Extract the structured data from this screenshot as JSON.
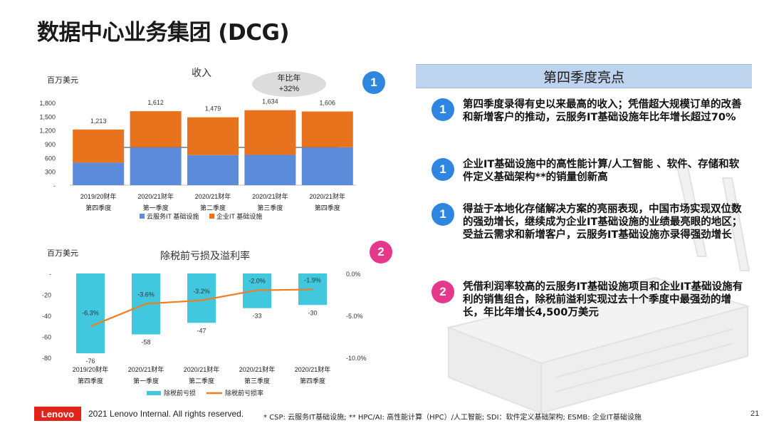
{
  "page": {
    "title": "数据中心业务集团 (DCG)",
    "footer_brand": "Lenovo",
    "footer_copyright": "2021 Lenovo Internal. All rights reserved.",
    "footer_note": "* CSP: 云服务IT基础设施; ** HPC/AI: 高性能计算（HPC）/人工智能; SDI：软件定义基础架构; ESMB: 企业IT基础设施",
    "page_number": "21"
  },
  "revenue_panel": {
    "badge": "1",
    "unit": "百万美元",
    "yoy_label": "年比年",
    "yoy_value": "+32%"
  },
  "pti_panel": {
    "badge": "2",
    "unit": "百万美元"
  },
  "highlights": {
    "title": "第四季度亮点",
    "items": [
      {
        "badge": "1",
        "text": "第四季度录得有史以来最高的收入；凭借超大规模订单的改善和新增客户的推动，云服务IT基础设施年比年增长超过70%"
      },
      {
        "badge": "1",
        "text": "企业IT基础设施中的高性能计算/人工智能 、软件、存储和软件定义基础架构**的销量创新高"
      },
      {
        "badge": "1",
        "text": "得益于本地化存储解决方案的亮丽表现，中国市场实现双位数的强劲增长，继续成为企业IT基础设施的业绩最亮眼的地区；受益云需求和新增客户，云服务IT基础设施亦录得强劲增长"
      },
      {
        "badge": "2",
        "text": "凭借利润率较高的云服务IT基础设施项目和企业IT基础设施有利的销售组合，除税前溢利实现过去十个季度中最强劲的增长，年比年增长4,500万美元"
      }
    ]
  },
  "chart_data": [
    {
      "type": "bar",
      "stacked": true,
      "title": "收入",
      "ylabel": "百万美元",
      "ylim": [
        0,
        1800
      ],
      "yticks": [
        "-",
        "300",
        "600",
        "900",
        "1,200",
        "1,500",
        "1,800"
      ],
      "ytick_values": [
        0,
        300,
        600,
        900,
        1200,
        1500,
        1800
      ],
      "categories": [
        [
          "2019/20财年",
          "第四季度"
        ],
        [
          "2020/21财年",
          "第一季度"
        ],
        [
          "2020/21财年",
          "第二季度"
        ],
        [
          "2020/21财年",
          "第三季度"
        ],
        [
          "2020/21财年",
          "第四季度"
        ]
      ],
      "series": [
        {
          "name": "云服务IT 基础设施",
          "color": "#5b8bd9",
          "values": [
            490,
            825,
            655,
            660,
            825
          ]
        },
        {
          "name": "企业IT 基础设施",
          "color": "#e8731c",
          "values": [
            723,
            787,
            824,
            974,
            781
          ]
        }
      ],
      "totals": [
        1213,
        1612,
        1479,
        1634,
        1606
      ],
      "total_labels": [
        "1,213",
        "1,612",
        "1,479",
        "1,634",
        "1,606"
      ]
    },
    {
      "type": "bar+line",
      "title": "除税前亏损及溢利率",
      "ylabel": "百万美元",
      "ylim": [
        -80,
        0
      ],
      "yticks": [
        "-",
        "-20",
        "-40",
        "-60",
        "-80"
      ],
      "ytick_values": [
        0,
        -20,
        -40,
        -60,
        -80
      ],
      "y2lim": [
        -10,
        0
      ],
      "y2ticks": [
        "0.0%",
        "-5.0%",
        "-10.0%"
      ],
      "y2tick_values": [
        0,
        -5,
        -10
      ],
      "categories": [
        [
          "2019/20财年",
          "第四季度"
        ],
        [
          "2020/21财年",
          "第一季度"
        ],
        [
          "2020/21财年",
          "第二季度"
        ],
        [
          "2020/21财年",
          "第三季度"
        ],
        [
          "2020/21财年",
          "第四季度"
        ]
      ],
      "series": [
        {
          "name": "除税前亏损",
          "type": "bar",
          "color": "#41c8df",
          "values": [
            -76,
            -58,
            -47,
            -33,
            -30
          ],
          "labels": [
            "-76",
            "-58",
            "-47",
            "-33",
            "-30"
          ]
        },
        {
          "name": "除税前亏损率",
          "type": "line",
          "axis": "y2",
          "color": "#f07d1f",
          "values": [
            -6.3,
            -3.6,
            -3.2,
            -2.0,
            -1.9
          ],
          "labels": [
            "-6.3%",
            "-3.6%",
            "-3.2%",
            "-2.0%",
            "-1.9%"
          ]
        }
      ]
    }
  ]
}
